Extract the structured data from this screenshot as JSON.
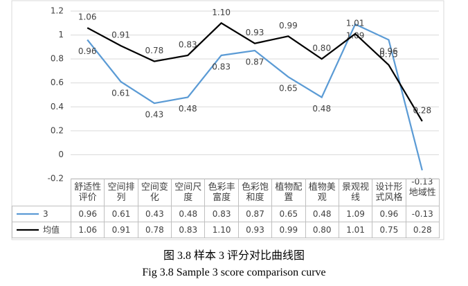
{
  "chart_data": {
    "type": "line",
    "categories": [
      "舒适性评价",
      "空间排列",
      "空间变化",
      "空间尺度",
      "色彩丰富度",
      "色彩饱和度",
      "植物配置",
      "植物美观",
      "景观视线",
      "设计形式风格",
      "地域性"
    ],
    "series": [
      {
        "name": "3",
        "color": "#5b9bd5",
        "values": [
          0.96,
          0.61,
          0.43,
          0.48,
          0.83,
          0.87,
          0.65,
          0.48,
          1.09,
          0.96,
          -0.13
        ],
        "value_labels": [
          "0.96",
          "0.61",
          "0.43",
          "0.48",
          "0.83",
          "0.87",
          "0.65",
          "0.48",
          "1.09",
          "0.96",
          "-0.13"
        ]
      },
      {
        "name": "均值",
        "color": "#000000",
        "values": [
          1.06,
          0.91,
          0.78,
          0.83,
          1.1,
          0.93,
          0.99,
          0.8,
          1.01,
          0.75,
          0.28
        ],
        "value_labels": [
          "1.06",
          "0.91",
          "0.78",
          "0.83",
          "1.10",
          "0.93",
          "0.99",
          "0.80",
          "1.01",
          "0.75",
          "0.28"
        ]
      }
    ],
    "ylim": [
      -0.2,
      1.2
    ],
    "yticks": [
      -0.2,
      0,
      0.2,
      0.4,
      0.6,
      0.8,
      1,
      1.2
    ],
    "grid": true,
    "caption_cn": "图 3.8 样本 3 评分对比曲线图",
    "caption_en": "Fig 3.8    Sample 3 score comparison curve"
  }
}
